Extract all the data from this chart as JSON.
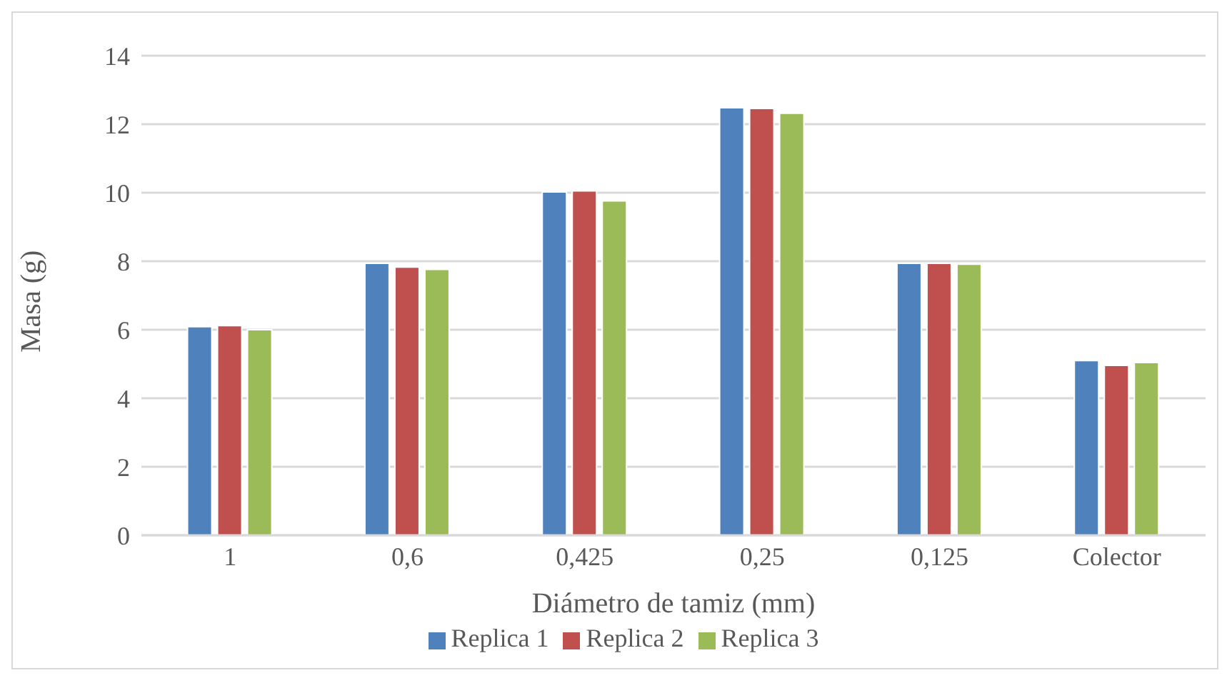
{
  "chart_data": {
    "type": "bar",
    "xlabel": "Diámetro de tamiz (mm)",
    "ylabel": "Masa (g)",
    "categories": [
      "1",
      "0,6",
      "0,425",
      "0,25",
      "0,125",
      "Colector"
    ],
    "series": [
      {
        "name": "Replica 1",
        "color": "#4f81bd",
        "values": [
          6.09,
          7.94,
          10.02,
          12.48,
          7.94,
          5.1
        ]
      },
      {
        "name": "Replica 2",
        "color": "#c0504d",
        "values": [
          6.12,
          7.83,
          10.05,
          12.46,
          7.94,
          4.96
        ]
      },
      {
        "name": "Replica 3",
        "color": "#9bbb59",
        "values": [
          6.0,
          7.76,
          9.76,
          12.32,
          7.91,
          5.04
        ]
      }
    ],
    "ylim": [
      0,
      14
    ],
    "yticks": [
      0,
      2,
      4,
      6,
      8,
      10,
      12,
      14
    ],
    "grid": "y",
    "legend": "bottom"
  }
}
